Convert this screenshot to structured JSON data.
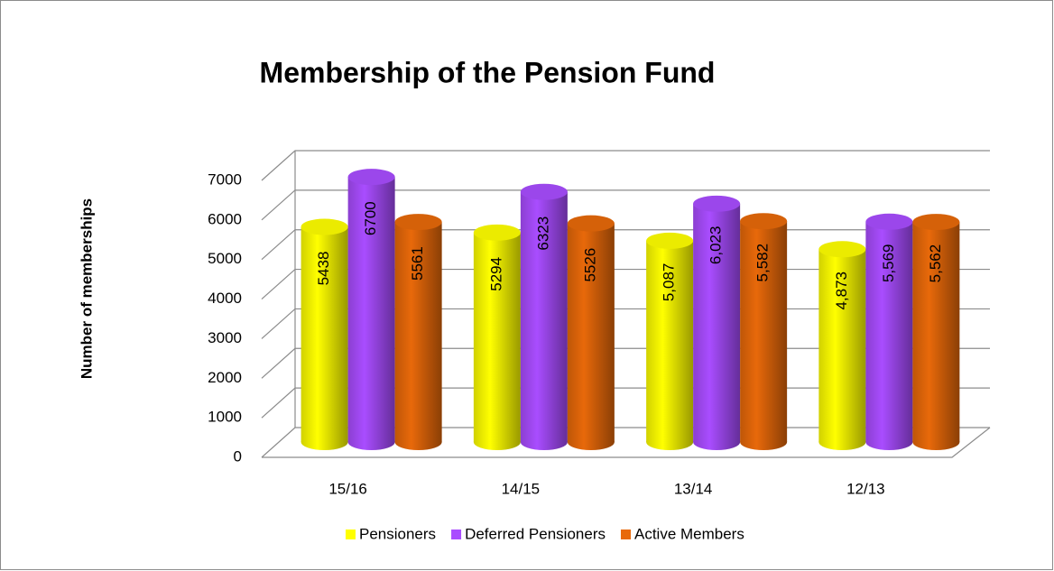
{
  "chart_data": {
    "type": "bar3d",
    "title": "Membership of the Pension Fund",
    "y_label": "Number of memberships",
    "categories": [
      "15/16",
      "14/15",
      "13/14",
      "12/13"
    ],
    "series": [
      {
        "name": "Pensioners",
        "color": "#ffff00",
        "values": [
          5438,
          5294,
          5087,
          4873
        ],
        "value_labels": [
          "5438",
          "5294",
          "5,087",
          "4,873"
        ]
      },
      {
        "name": "Deferred Pensioners",
        "color": "#a94dff",
        "values": [
          6700,
          6323,
          6023,
          5569
        ],
        "value_labels": [
          "6700",
          "6323",
          "6,023",
          "5,569"
        ]
      },
      {
        "name": "Active Members",
        "color": "#e8690a",
        "values": [
          5561,
          5526,
          5582,
          5562
        ],
        "value_labels": [
          "5561",
          "5526",
          "5,582",
          "5,562"
        ]
      }
    ],
    "ylim": [
      0,
      7000
    ],
    "yticks": [
      0,
      1000,
      2000,
      3000,
      4000,
      5000,
      6000,
      7000
    ],
    "grid": true,
    "legend": "bottom"
  }
}
